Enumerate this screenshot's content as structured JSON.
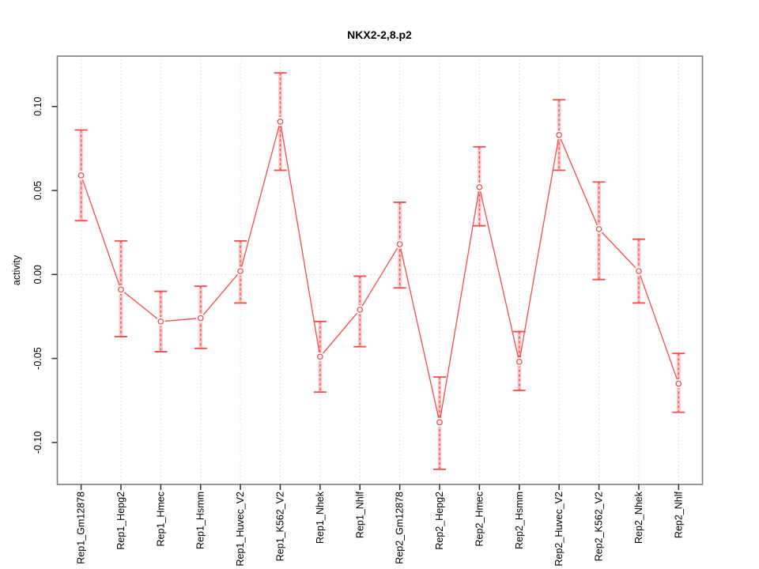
{
  "figure": {
    "title": "NKX2-2,8.p2",
    "ylabel": "activity",
    "xlabel": ""
  },
  "chart_data": {
    "type": "line",
    "title": "NKX2-2,8.p2",
    "xlabel": "",
    "ylabel": "activity",
    "categories": [
      "Rep1_Gm12878",
      "Rep1_Hepg2",
      "Rep1_Hmec",
      "Rep1_Hsmm",
      "Rep1_Huvec_V2",
      "Rep1_K562_V2",
      "Rep1_Nhek",
      "Rep1_Nhlf",
      "Rep2_Gm12878",
      "Rep2_Hepg2",
      "Rep2_Hmec",
      "Rep2_Hsmm",
      "Rep2_Huvec_V2",
      "Rep2_K562_V2",
      "Rep2_Nhek",
      "Rep2_Nhlf"
    ],
    "series": [
      {
        "name": "activity",
        "values": [
          0.059,
          -0.009,
          -0.028,
          -0.026,
          0.002,
          0.091,
          -0.049,
          -0.021,
          0.018,
          -0.088,
          0.052,
          -0.052,
          0.083,
          0.027,
          0.002,
          -0.065
        ],
        "upper": [
          0.086,
          0.02,
          -0.01,
          -0.007,
          0.02,
          0.12,
          -0.028,
          -0.001,
          0.043,
          -0.061,
          0.076,
          -0.034,
          0.104,
          0.055,
          0.021,
          -0.047
        ],
        "lower": [
          0.032,
          -0.037,
          -0.046,
          -0.044,
          -0.017,
          0.062,
          -0.07,
          -0.043,
          -0.008,
          -0.116,
          0.029,
          -0.069,
          0.062,
          -0.003,
          -0.017,
          -0.082
        ]
      }
    ],
    "ylim": [
      -0.125,
      0.13
    ],
    "yticks": [
      -0.1,
      -0.05,
      0.0,
      0.05,
      0.1
    ],
    "grid": "dotted vertical line at each category; dotted horizontal line at y=0",
    "legend_position": "none",
    "marker": "open-circle",
    "error_bars": true
  },
  "colors": {
    "series_red": "#f24b4b",
    "error_band_pink": "#f59d9d",
    "gridline": "#d6d6d6",
    "plot_border": "#7e7e7e",
    "tick": "#303030",
    "text": "#000000",
    "background": "#ffffff"
  }
}
